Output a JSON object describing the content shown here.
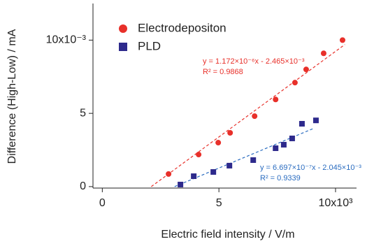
{
  "chart_data": {
    "type": "scatter",
    "x_label": "Electric field intensity / V/m",
    "y_label": "Difference (High-Low) / mA",
    "xlim": [
      -0.4,
      10.9
    ],
    "ylim": [
      -0.1,
      12.5
    ],
    "xticks": [
      0,
      5,
      {
        "value": 10,
        "label": "10x10³"
      }
    ],
    "yticks": [
      0,
      5,
      {
        "value": 10,
        "label": "10x10⁻³"
      }
    ],
    "series": [
      {
        "name": "Electrodepositon",
        "color": "#e8302a",
        "marker": "circle",
        "x": [
          2.84,
          4.13,
          4.97,
          5.48,
          6.53,
          7.43,
          8.26,
          8.74,
          9.49,
          10.3
        ],
        "values": [
          0.86,
          2.19,
          3.0,
          3.67,
          4.81,
          5.95,
          7.1,
          8.0,
          9.1,
          10.0
        ],
        "fit": {
          "x": [
            2.1,
            10.4
          ],
          "values": [
            0,
            9.7
          ]
        },
        "equation": "y = 1.172×10⁻⁶x - 2.465×10⁻³",
        "r2": "R² = 0.9868"
      },
      {
        "name": "PLD",
        "color": "#2e2a8c",
        "marker": "square",
        "fit_color": "#2a6cc0",
        "x": [
          3.35,
          3.92,
          4.76,
          5.45,
          6.47,
          7.43,
          7.78,
          8.14,
          8.56,
          9.16
        ],
        "values": [
          0.14,
          0.71,
          1.0,
          1.43,
          1.81,
          2.62,
          2.86,
          3.29,
          4.29,
          4.52
        ],
        "fit": {
          "x": [
            3.1,
            9.1
          ],
          "values": [
            0,
            4.0
          ]
        },
        "equation": "y = 6.697×10⁻⁷x - 2.045×10⁻³",
        "r2": "R² = 0.9339"
      }
    ]
  }
}
